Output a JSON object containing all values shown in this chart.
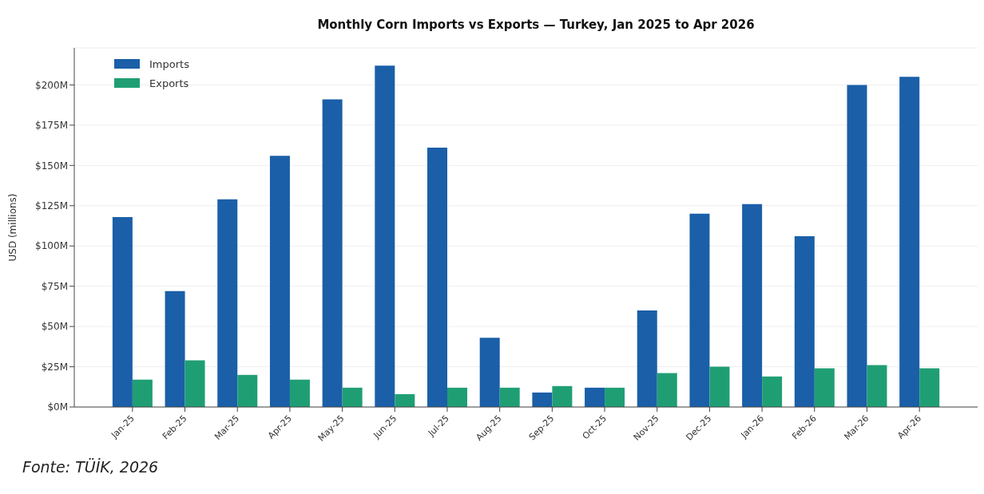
{
  "chart_data": {
    "type": "bar",
    "title": "Monthly Corn Imports vs Exports — Turkey, Jan 2025 to Apr 2026",
    "ylabel": "USD (millions)",
    "categories": [
      "Jan-25",
      "Feb-25",
      "Mar-25",
      "Apr-25",
      "May-25",
      "Jun-25",
      "Jul-25",
      "Aug-25",
      "Sep-25",
      "Oct-25",
      "Nov-25",
      "Dec-25",
      "Jan-26",
      "Feb-26",
      "Mar-26",
      "Apr-26"
    ],
    "series": [
      {
        "name": "Imports",
        "color": "#1a5fa8",
        "values": [
          118,
          72,
          129,
          156,
          191,
          212,
          161,
          43,
          9,
          12,
          60,
          120,
          126,
          106,
          200,
          205
        ]
      },
      {
        "name": "Exports",
        "color": "#1f9e74",
        "values": [
          17,
          29,
          20,
          17,
          12,
          8,
          12,
          12,
          13,
          12,
          21,
          25,
          19,
          24,
          26,
          24
        ]
      }
    ],
    "ylim": [
      0,
      223
    ],
    "yticks": [
      {
        "value": 0,
        "label": "$0M"
      },
      {
        "value": 25,
        "label": "$25M"
      },
      {
        "value": 50,
        "label": "$50M"
      },
      {
        "value": 75,
        "label": "$75M"
      },
      {
        "value": 100,
        "label": "$100M"
      },
      {
        "value": 125,
        "label": "$125M"
      },
      {
        "value": 150,
        "label": "$150M"
      },
      {
        "value": 175,
        "label": "$175M"
      },
      {
        "value": 200,
        "label": "$200M"
      }
    ],
    "grid": "y",
    "legend": "top left",
    "annotations": [
      "Fonte: TÜİK, 2026"
    ]
  }
}
